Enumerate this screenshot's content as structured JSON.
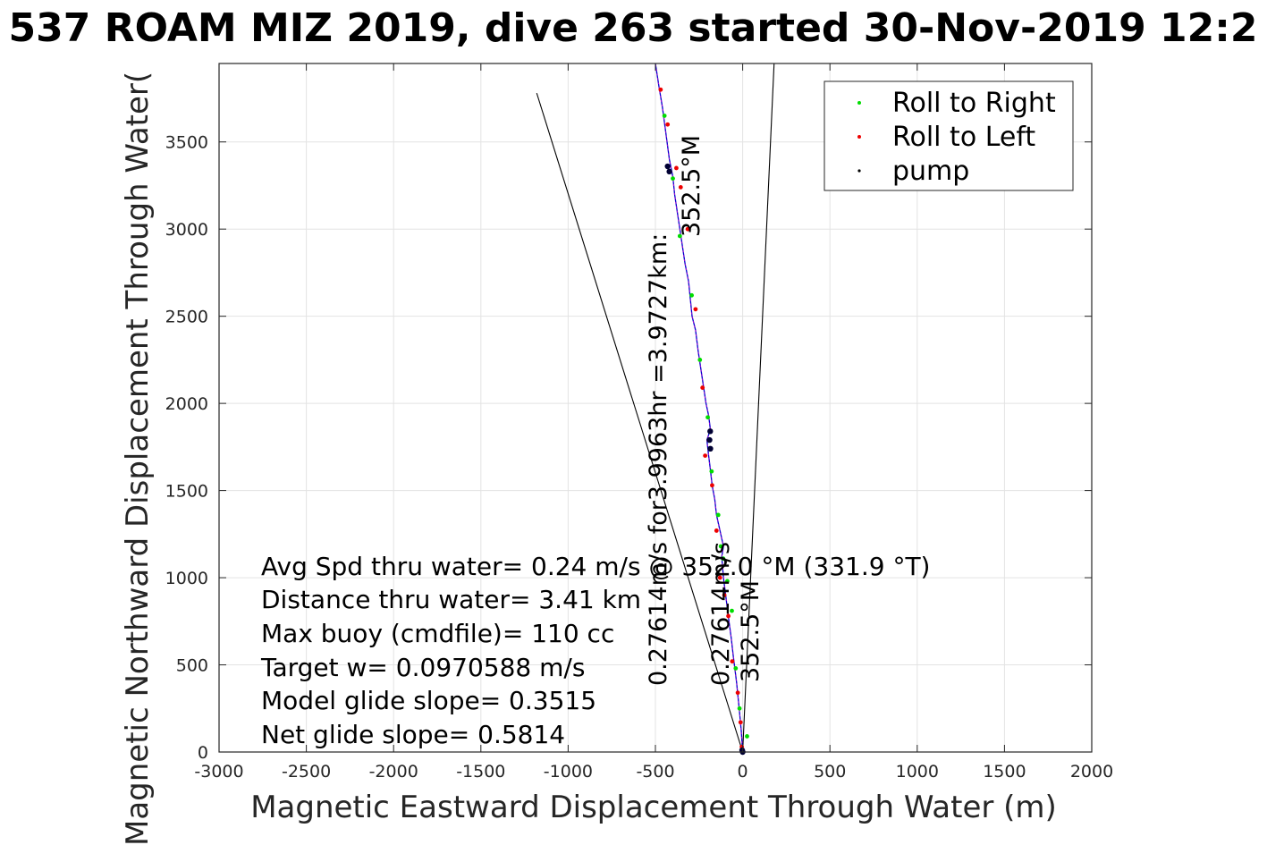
{
  "chart_data": {
    "type": "line",
    "title": "537 ROAM MIZ 2019, dive 263 started 30-Nov-2019 12:2",
    "xlabel": "Magnetic Eastward Displacement Through Water (m)",
    "ylabel": "Magnetic Northward Displacement Through Water(",
    "xlim": [
      -3000,
      2000
    ],
    "ylim": [
      0,
      3950
    ],
    "xticks": [
      -3000,
      -2500,
      -2000,
      -1500,
      -1000,
      -500,
      0,
      500,
      1000,
      1500,
      2000
    ],
    "yticks": [
      0,
      500,
      1000,
      1500,
      2000,
      2500,
      3000,
      3500
    ],
    "grid": true,
    "legend": {
      "placement": "top-right",
      "entries": [
        {
          "label": "Roll to Right",
          "color": "#00dd00"
        },
        {
          "label": "Roll to Left",
          "color": "#ee0000"
        },
        {
          "label": "pump",
          "color": "#000000"
        }
      ]
    },
    "track_color": "#0000cc",
    "track": {
      "x": [
        0,
        -8,
        -20,
        -35,
        -45,
        -55,
        -65,
        -80,
        -95,
        -110,
        -120,
        -110,
        -130,
        -150,
        -160,
        -175,
        -185,
        -195,
        -205,
        -185,
        -195,
        -210,
        -225,
        -240,
        -255,
        -270,
        -290,
        -300,
        -310,
        -330,
        -345,
        -360,
        -375,
        -390,
        -400,
        -420,
        -440,
        -460,
        -480,
        -500
      ],
      "y": [
        0,
        120,
        250,
        400,
        480,
        560,
        650,
        760,
        880,
        1000,
        1120,
        1180,
        1270,
        1360,
        1450,
        1530,
        1620,
        1700,
        1790,
        1850,
        1930,
        2000,
        2100,
        2200,
        2300,
        2420,
        2500,
        2600,
        2700,
        2800,
        2900,
        3000,
        3100,
        3200,
        3300,
        3400,
        3550,
        3700,
        3820,
        3950
      ]
    },
    "roll_right_points": {
      "x": [
        25,
        -18,
        -40,
        -62,
        -88,
        -112,
        -125,
        -140,
        -178,
        -200,
        -245,
        -292,
        -360,
        -400,
        -448
      ],
      "y": [
        90,
        250,
        480,
        810,
        980,
        1110,
        1180,
        1360,
        1610,
        1920,
        2250,
        2620,
        2960,
        3290,
        3650
      ]
    },
    "roll_left_points": {
      "x": [
        -5,
        -12,
        -28,
        -60,
        -82,
        -105,
        -130,
        -150,
        -175,
        -215,
        -230,
        -270,
        -315,
        -355,
        -380,
        -430,
        -470
      ],
      "y": [
        30,
        170,
        340,
        520,
        780,
        900,
        1000,
        1270,
        1530,
        1700,
        2090,
        2540,
        3000,
        3240,
        3350,
        3600,
        3800
      ]
    },
    "pump_points": {
      "x": [
        0,
        -3,
        -185,
        -190,
        -186,
        -420,
        -430
      ],
      "y": [
        0,
        10,
        1740,
        1790,
        1840,
        3330,
        3360
      ]
    },
    "reference_lines": [
      {
        "x": [
          0,
          -1180
        ],
        "y": [
          0,
          3780
        ]
      },
      {
        "x": [
          0,
          180
        ],
        "y": [
          0,
          3950
        ]
      }
    ],
    "annotations": [
      "Avg Spd thru water=  0.24 m/s @ 352.0 °M (331.9 °T)",
      "Distance thru water=  3.41 km",
      "Max buoy (cmdfile)= 110 cc",
      "Target w= 0.0970588 m/s",
      "Model glide slope= 0.3515",
      "Net glide slope= 0.5814"
    ],
    "rotated_labels": {
      "upper_a": "352.5°M",
      "upper_b": "0.27614m/s for3.9963hr =3.9727km:",
      "lower_a": "0.27614m/s",
      "lower_b": "352.5°M"
    }
  }
}
